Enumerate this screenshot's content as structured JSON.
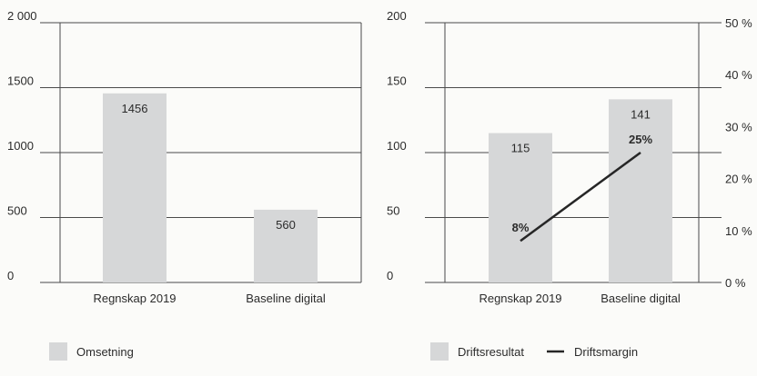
{
  "colors": {
    "bar": "#d6d7d8",
    "grid": "#4a4a4a",
    "text": "#2b2b2b",
    "line": "#262626",
    "background": "#fbfbf9"
  },
  "chart_data": [
    {
      "type": "bar",
      "categories": [
        "Regnskap 2019",
        "Baseline digital"
      ],
      "series": [
        {
          "name": "Omsetning",
          "values": [
            1456,
            560
          ]
        }
      ],
      "data_labels": [
        "1456",
        "560"
      ],
      "y_ticks": [
        {
          "value": 0,
          "label": "0"
        },
        {
          "value": 500,
          "label": "500"
        },
        {
          "value": 1000,
          "label": "1000"
        },
        {
          "value": 1500,
          "label": "1500"
        },
        {
          "value": 2000,
          "label": "2 000"
        }
      ],
      "ylim": [
        0,
        2000
      ],
      "grid": true,
      "legend": {
        "position": "bottom-left",
        "entries": [
          "Omsetning"
        ]
      }
    },
    {
      "type": "bar",
      "categories": [
        "Regnskap 2019",
        "Baseline digital"
      ],
      "series": [
        {
          "name": "Driftsresultat",
          "values": [
            115,
            141
          ],
          "axis": "left"
        },
        {
          "name": "Driftsmargin",
          "type": "line",
          "values": [
            8,
            25
          ],
          "axis": "right"
        }
      ],
      "bar_labels": [
        "115",
        "141"
      ],
      "line_labels": [
        "8%",
        "25%"
      ],
      "y_ticks": [
        {
          "value": 0,
          "label": "0"
        },
        {
          "value": 50,
          "label": "50"
        },
        {
          "value": 100,
          "label": "100"
        },
        {
          "value": 150,
          "label": "150"
        },
        {
          "value": 200,
          "label": "200"
        }
      ],
      "y2_ticks": [
        {
          "value": 0,
          "label": "0 %"
        },
        {
          "value": 10,
          "label": "10 %"
        },
        {
          "value": 20,
          "label": "20 %"
        },
        {
          "value": 30,
          "label": "30 %"
        },
        {
          "value": 40,
          "label": "40 %"
        },
        {
          "value": 50,
          "label": "50 %"
        }
      ],
      "ylim": [
        0,
        200
      ],
      "y2lim": [
        0,
        50
      ],
      "grid": true,
      "legend": {
        "position": "bottom-left",
        "entries": [
          "Driftsresultat",
          "Driftsmargin"
        ]
      }
    }
  ]
}
